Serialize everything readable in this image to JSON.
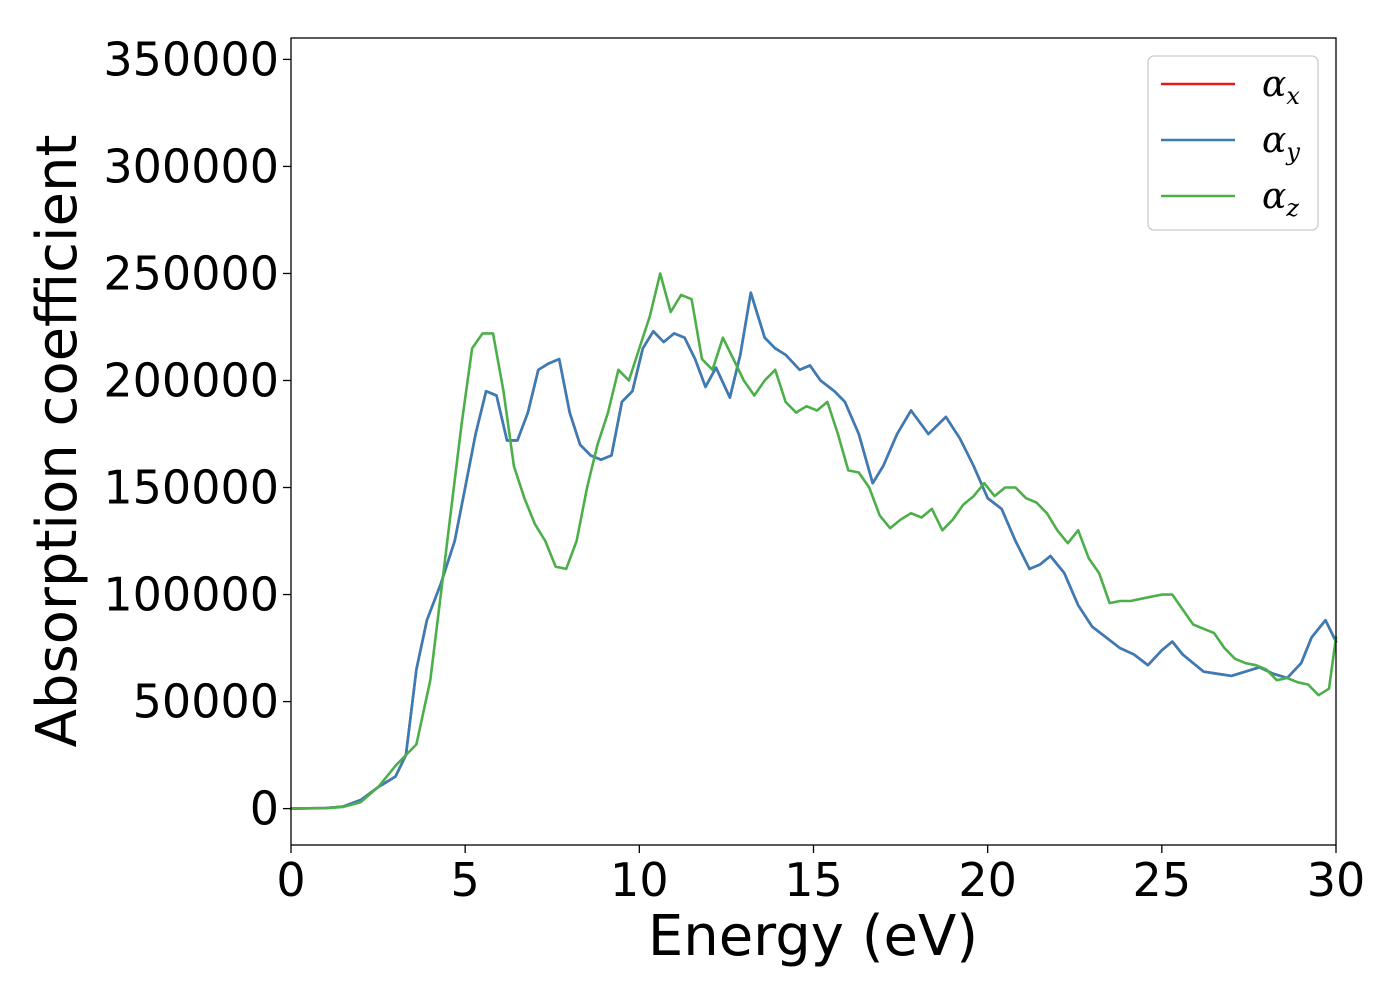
{
  "chart_data": {
    "type": "line",
    "xlabel": "Energy (eV)",
    "ylabel": "Absorption coefficient",
    "xlim": [
      0,
      30
    ],
    "ylim": [
      -17000,
      360000
    ],
    "x_ticks": [
      0,
      5,
      10,
      15,
      20,
      25,
      30
    ],
    "y_ticks": [
      0,
      50000,
      100000,
      150000,
      200000,
      250000,
      300000,
      350000
    ],
    "grid": false,
    "legend": {
      "placement": "top-right",
      "entries": [
        {
          "symbol": "α",
          "sub": "x",
          "color": "#e41a1c"
        },
        {
          "symbol": "α",
          "sub": "y",
          "color": "#377eb8"
        },
        {
          "symbol": "α",
          "sub": "z",
          "color": "#4daf4a"
        }
      ]
    },
    "series": [
      {
        "color": "#e41a1c",
        "x": [
          0,
          1,
          1.5,
          2,
          2.5,
          3,
          3.3,
          3.6,
          3.9,
          4.3,
          4.7,
          5,
          5.3,
          5.6,
          5.9,
          6.2,
          6.5,
          6.8,
          7.1,
          7.4,
          7.7,
          8,
          8.3,
          8.6,
          8.9,
          9.2,
          9.5,
          9.8,
          10.1,
          10.4,
          10.7,
          11,
          11.3,
          11.6,
          11.9,
          12.2,
          12.6,
          12.9,
          13.2,
          13.6,
          13.9,
          14.2,
          14.6,
          14.9,
          15.2,
          15.6,
          15.9,
          16.3,
          16.7,
          17,
          17.4,
          17.8,
          18.3,
          18.8,
          19.2,
          19.6,
          20,
          20.4,
          20.8,
          21.2,
          21.5,
          21.8,
          22.2,
          22.6,
          23,
          23.4,
          23.8,
          24.2,
          24.6,
          25,
          25.3,
          25.6,
          25.9,
          26.2,
          26.6,
          27,
          27.4,
          27.8,
          28.2,
          28.6,
          29,
          29.3,
          29.7,
          30
        ],
        "y": [
          0,
          300,
          1000,
          4000,
          10000,
          15000,
          25000,
          65000,
          88000,
          105000,
          125000,
          150000,
          175000,
          195000,
          193000,
          172000,
          172000,
          185000,
          205000,
          208000,
          210000,
          185000,
          170000,
          165000,
          163000,
          165000,
          190000,
          195000,
          215000,
          223000,
          218000,
          222000,
          220000,
          210000,
          197000,
          206000,
          192000,
          212000,
          241000,
          220000,
          215000,
          212000,
          205000,
          207000,
          200000,
          195000,
          190000,
          175000,
          152000,
          160000,
          175000,
          186000,
          175000,
          183000,
          173000,
          160000,
          145000,
          140000,
          125000,
          112000,
          114000,
          118000,
          110000,
          95000,
          85000,
          80000,
          75000,
          72000,
          67000,
          74000,
          78000,
          72000,
          68000,
          64000,
          63000,
          62000,
          64000,
          66000,
          63000,
          61000,
          68000,
          80000,
          88000,
          78000
        ]
      },
      {
        "color": "#377eb8",
        "x": [
          0,
          1,
          1.5,
          2,
          2.5,
          3,
          3.3,
          3.6,
          3.9,
          4.3,
          4.7,
          5,
          5.3,
          5.6,
          5.9,
          6.2,
          6.5,
          6.8,
          7.1,
          7.4,
          7.7,
          8,
          8.3,
          8.6,
          8.9,
          9.2,
          9.5,
          9.8,
          10.1,
          10.4,
          10.7,
          11,
          11.3,
          11.6,
          11.9,
          12.2,
          12.6,
          12.9,
          13.2,
          13.6,
          13.9,
          14.2,
          14.6,
          14.9,
          15.2,
          15.6,
          15.9,
          16.3,
          16.7,
          17,
          17.4,
          17.8,
          18.3,
          18.8,
          19.2,
          19.6,
          20,
          20.4,
          20.8,
          21.2,
          21.5,
          21.8,
          22.2,
          22.6,
          23,
          23.4,
          23.8,
          24.2,
          24.6,
          25,
          25.3,
          25.6,
          25.9,
          26.2,
          26.6,
          27,
          27.4,
          27.8,
          28.2,
          28.6,
          29,
          29.3,
          29.7,
          30
        ],
        "y": [
          0,
          300,
          1000,
          4000,
          10000,
          15000,
          25000,
          65000,
          88000,
          105000,
          125000,
          150000,
          175000,
          195000,
          193000,
          172000,
          172000,
          185000,
          205000,
          208000,
          210000,
          185000,
          170000,
          165000,
          163000,
          165000,
          190000,
          195000,
          215000,
          223000,
          218000,
          222000,
          220000,
          210000,
          197000,
          206000,
          192000,
          212000,
          241000,
          220000,
          215000,
          212000,
          205000,
          207000,
          200000,
          195000,
          190000,
          175000,
          152000,
          160000,
          175000,
          186000,
          175000,
          183000,
          173000,
          160000,
          145000,
          140000,
          125000,
          112000,
          114000,
          118000,
          110000,
          95000,
          85000,
          80000,
          75000,
          72000,
          67000,
          74000,
          78000,
          72000,
          68000,
          64000,
          63000,
          62000,
          64000,
          66000,
          63000,
          61000,
          68000,
          80000,
          88000,
          78000
        ]
      },
      {
        "color": "#4daf4a",
        "x": [
          0,
          1,
          1.5,
          2,
          2.5,
          3,
          3.3,
          3.6,
          4,
          4.3,
          4.6,
          4.9,
          5.2,
          5.5,
          5.8,
          6.1,
          6.4,
          6.7,
          7,
          7.3,
          7.6,
          7.9,
          8.2,
          8.5,
          8.8,
          9.1,
          9.4,
          9.7,
          10,
          10.3,
          10.6,
          10.9,
          11.2,
          11.5,
          11.8,
          12.1,
          12.4,
          12.7,
          13,
          13.3,
          13.6,
          13.9,
          14.2,
          14.5,
          14.8,
          15.1,
          15.4,
          15.7,
          16,
          16.3,
          16.6,
          16.9,
          17.2,
          17.5,
          17.8,
          18.1,
          18.4,
          18.7,
          19,
          19.3,
          19.6,
          19.9,
          20.2,
          20.5,
          20.8,
          21.1,
          21.4,
          21.7,
          22,
          22.3,
          22.6,
          22.9,
          23.2,
          23.5,
          23.8,
          24.1,
          24.4,
          24.7,
          25,
          25.3,
          25.6,
          25.9,
          26.2,
          26.5,
          26.8,
          27.1,
          27.4,
          27.7,
          28,
          28.3,
          28.6,
          28.9,
          29.2,
          29.5,
          29.8,
          30
        ],
        "y": [
          0,
          200,
          800,
          3000,
          10000,
          20000,
          25000,
          30000,
          60000,
          100000,
          140000,
          180000,
          215000,
          222000,
          222000,
          195000,
          160000,
          145000,
          133000,
          125000,
          113000,
          112000,
          125000,
          150000,
          170000,
          185000,
          205000,
          200000,
          215000,
          230000,
          250000,
          232000,
          240000,
          238000,
          210000,
          205000,
          220000,
          210000,
          200000,
          193000,
          200000,
          205000,
          190000,
          185000,
          188000,
          186000,
          190000,
          175000,
          158000,
          157000,
          150000,
          137000,
          131000,
          135000,
          138000,
          136000,
          140000,
          130000,
          135000,
          142000,
          146000,
          152000,
          146000,
          150000,
          150000,
          145000,
          143000,
          138000,
          130000,
          124000,
          130000,
          117000,
          110000,
          96000,
          97000,
          97000,
          98000,
          99000,
          100000,
          100000,
          93000,
          86000,
          84000,
          82000,
          75000,
          70000,
          68000,
          67000,
          65000,
          60000,
          61000,
          59000,
          58000,
          53000,
          56000,
          80000
        ]
      }
    ]
  }
}
